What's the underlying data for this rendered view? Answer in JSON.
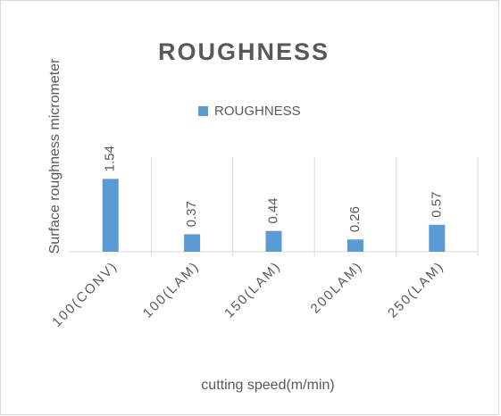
{
  "chart_data": {
    "type": "bar",
    "title": "ROUGHNESS",
    "categories": [
      "100(CONV)",
      "100(LAM)",
      "150(LAM)",
      "200LAM)",
      "250(LAM)"
    ],
    "series": [
      {
        "name": "ROUGHNESS",
        "color": "#5b9bd5",
        "values": [
          1.54,
          0.37,
          0.44,
          0.26,
          0.57
        ]
      }
    ],
    "x_label": "cutting speed(m/min)",
    "y_label": "Surface roughness micrometer",
    "ylim": [
      0,
      2
    ],
    "legend": "top"
  }
}
